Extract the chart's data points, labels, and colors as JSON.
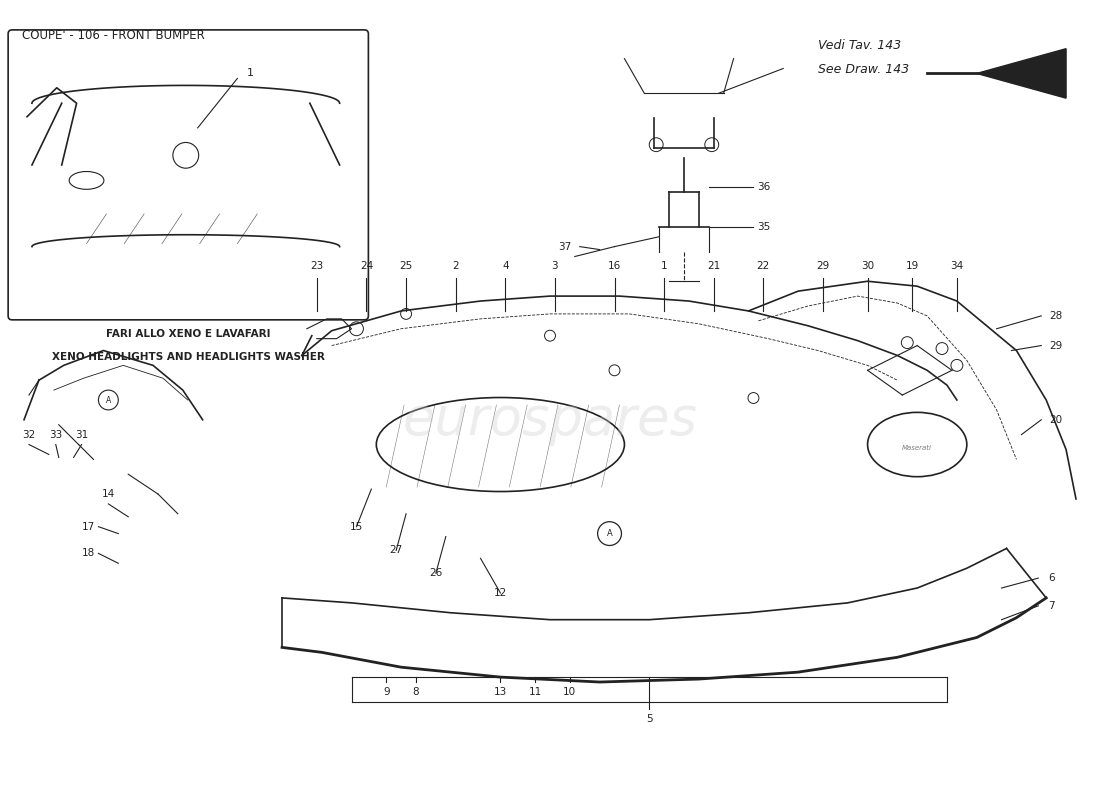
{
  "title": "COUPE' - 106 - FRONT BUMPER",
  "title_fontsize": 9,
  "background_color": "#ffffff",
  "inset_label_it": "FARI ALLO XENO E LAVAFARI",
  "inset_label_en": "XENO HEADLIGHTS AND HEADLIGHTS WASHER",
  "ref_label_it": "Vedi Tav. 143",
  "ref_label_en": "See Draw. 143",
  "watermark": "eurospares",
  "part_numbers": [
    1,
    2,
    3,
    4,
    5,
    6,
    7,
    8,
    9,
    10,
    11,
    12,
    13,
    14,
    15,
    16,
    17,
    18,
    19,
    20,
    21,
    22,
    23,
    24,
    25,
    26,
    27,
    28,
    29,
    30,
    31,
    32,
    33,
    34,
    35,
    36,
    37
  ],
  "line_color": "#222222",
  "label_color": "#222222"
}
